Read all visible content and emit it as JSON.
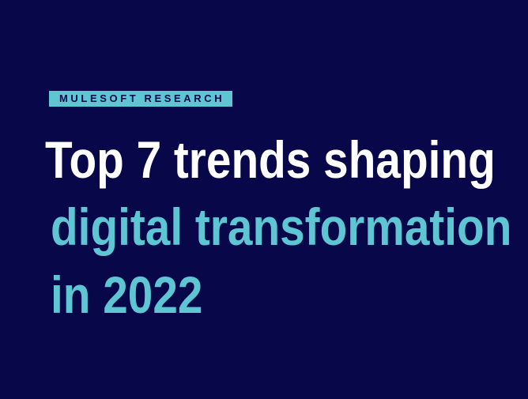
{
  "label": "MULESOFT RESEARCH",
  "title": [
    "Top 7 trends shaping",
    "digital transformation",
    "in 2022"
  ]
}
